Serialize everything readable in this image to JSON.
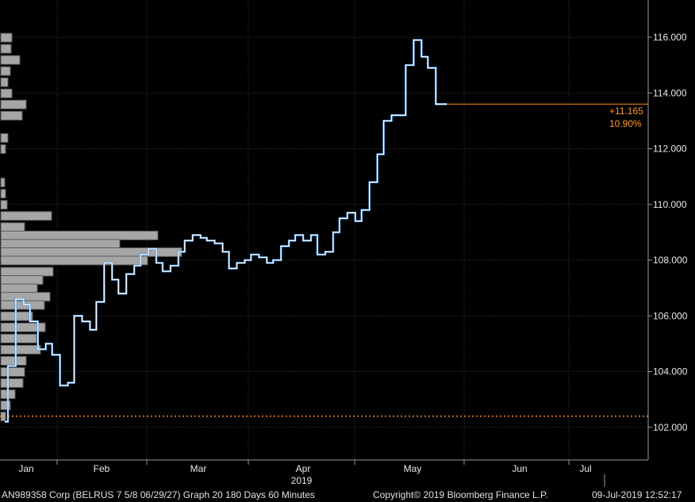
{
  "chart_data": {
    "type": "line",
    "ylim": [
      101,
      117.2
    ],
    "y_ticks": [
      "102.000",
      "104.000",
      "106.000",
      "108.000",
      "110.000",
      "112.000",
      "114.000",
      "116.000"
    ],
    "x_months": [
      "Jan",
      "Feb",
      "Mar",
      "Apr",
      "May",
      "Jun",
      "Jul"
    ],
    "year": "2019",
    "last_price": 113.6,
    "reference_level": 102.4,
    "change_abs": "+11.165",
    "change_pct": "10.90%",
    "series": [
      {
        "x": [
          "2019-01-02",
          "2019-01-04",
          "2019-01-07",
          "2019-01-09",
          "2019-01-11",
          "2019-01-14",
          "2019-01-16",
          "2019-01-18",
          "2019-01-21",
          "2019-01-23",
          "2019-01-25",
          "2019-01-28",
          "2019-01-30",
          "2019-02-01",
          "2019-02-04",
          "2019-02-06",
          "2019-02-08",
          "2019-02-11",
          "2019-02-13",
          "2019-02-15",
          "2019-02-18",
          "2019-02-20",
          "2019-02-22",
          "2019-02-25",
          "2019-02-27",
          "2019-03-01",
          "2019-03-04",
          "2019-03-06",
          "2019-03-08",
          "2019-03-11",
          "2019-03-13",
          "2019-03-15",
          "2019-03-18",
          "2019-03-20",
          "2019-03-22",
          "2019-03-25",
          "2019-03-27",
          "2019-03-29",
          "2019-04-01",
          "2019-04-03",
          "2019-04-05",
          "2019-04-08",
          "2019-04-10",
          "2019-04-12",
          "2019-04-15",
          "2019-04-17",
          "2019-04-19",
          "2019-04-22",
          "2019-04-24",
          "2019-04-26",
          "2019-04-29",
          "2019-05-01",
          "2019-05-03",
          "2019-05-06",
          "2019-05-08",
          "2019-05-10",
          "2019-05-13",
          "2019-05-15",
          "2019-05-17",
          "2019-05-20",
          "2019-05-22",
          "2019-05-24",
          "2019-05-27",
          "2019-05-29",
          "2019-05-31",
          "2019-06-03",
          "2019-06-05",
          "2019-06-07",
          "2019-06-10",
          "2019-06-12",
          "2019-06-14",
          "2019-06-17",
          "2019-06-19",
          "2019-06-21",
          "2019-06-24",
          "2019-06-26",
          "2019-06-28",
          "2019-07-01",
          "2019-07-03",
          "2019-07-05",
          "2019-07-09"
        ],
        "y": [
          102.2,
          104.2,
          106.6,
          106.4,
          105.8,
          104.8,
          105.0,
          104.6,
          103.5,
          103.6,
          106.0,
          105.8,
          105.5,
          106.5,
          107.9,
          107.3,
          106.8,
          107.5,
          107.8,
          108.2,
          108.4,
          107.9,
          107.6,
          107.8,
          108.3,
          108.7,
          108.9,
          108.8,
          108.7,
          108.6,
          108.3,
          107.7,
          107.9,
          108.0,
          108.2,
          108.1,
          107.9,
          108.0,
          108.5,
          108.7,
          108.9,
          108.7,
          108.9,
          108.2,
          108.3,
          109.0,
          109.5,
          109.7,
          109.4,
          109.8,
          110.8,
          111.8,
          113.0,
          113.2,
          113.2,
          115.0,
          115.9,
          115.3,
          114.9,
          113.6,
          113.6,
          null,
          null,
          null,
          null,
          null,
          null,
          null,
          null,
          null,
          null,
          null,
          null,
          null,
          null,
          null,
          null,
          null,
          null,
          null,
          null
        ]
      }
    ]
  },
  "footer": {
    "security": "AN989358 Corp (BELRUS 7 5/8 06/29/27) Graph 20 180 Days 60 Minutes",
    "copyright": "Copyright© 2019 Bloomberg Finance L.P.",
    "timestamp": "09-Jul-2019 12:52:17"
  },
  "colors": {
    "background": "#000000",
    "line_main": "#ffffff",
    "line_highlight": "#3d8fe0",
    "volume_bar": "#a6a6a6",
    "reference_line": "#ff8c1a",
    "change_text": "#ff9a26",
    "grid": "#3a3a3a"
  }
}
